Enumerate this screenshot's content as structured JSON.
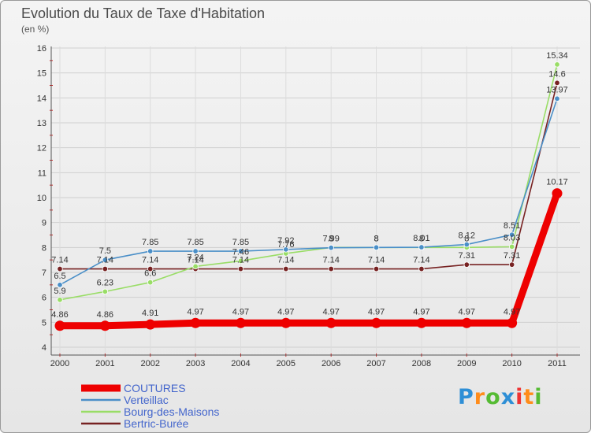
{
  "chart_data": {
    "type": "line",
    "title": "Evolution du Taux de Taxe d'Habitation",
    "subtitle": "(en %)",
    "ylim": [
      4,
      16
    ],
    "yticks": [
      "4",
      "5",
      "6",
      "7",
      "8",
      "9",
      "10",
      "11",
      "12",
      "13",
      "14",
      "15",
      "16"
    ],
    "categories": [
      "2000",
      "2001",
      "2002",
      "2003",
      "2004",
      "2005",
      "2006",
      "2007",
      "2008",
      "2009",
      "2010",
      "2011"
    ],
    "series": [
      {
        "name": "COUTURES",
        "color": "#ee0000",
        "values": [
          4.86,
          4.86,
          4.91,
          4.97,
          4.97,
          4.97,
          4.97,
          4.97,
          4.97,
          4.97,
          4.97,
          10.17
        ],
        "labels": [
          "4.86",
          "4.86",
          "4.91",
          "4.97",
          "4.97",
          "4.97",
          "4.97",
          "4.97",
          "4.97",
          "4.97",
          "4.97",
          "10.17"
        ]
      },
      {
        "name": "Verteillac",
        "color": "#4a8fc8",
        "values": [
          6.5,
          7.5,
          7.85,
          7.85,
          7.85,
          7.92,
          7.99,
          8,
          8.01,
          8.12,
          8.51,
          13.97
        ],
        "labels": [
          "6.5",
          "7.5",
          "7.85",
          "7.85",
          "7.85",
          "7.92",
          "7.99",
          "8",
          "8.01",
          "8.12",
          "8.51",
          "13.97"
        ]
      },
      {
        "name": "Bourg-des-Maisons",
        "color": "#99dd66",
        "values": [
          5.9,
          6.23,
          6.6,
          7.24,
          7.46,
          7.76,
          8,
          8,
          8,
          8,
          8.03,
          15.34
        ],
        "labels": [
          "5.9",
          "6.23",
          "6.6",
          "7.24",
          "7.46",
          "7.76",
          "8",
          "8",
          "8",
          "8",
          "8.03",
          "15.34"
        ]
      },
      {
        "name": "Bertric-Burée",
        "color": "#772222",
        "values": [
          7.14,
          7.14,
          7.14,
          7.14,
          7.14,
          7.14,
          7.14,
          7.14,
          7.14,
          7.31,
          7.31,
          14.6
        ],
        "labels": [
          "7.14",
          "7.14",
          "7.14",
          "7.14",
          "7.14",
          "7.14",
          "7.14",
          "7.14",
          "7.14",
          "7.31",
          "7.31",
          "14.6"
        ]
      }
    ]
  },
  "brand": {
    "letters": [
      "P",
      "r",
      "o",
      "x",
      "i",
      "t",
      "i"
    ],
    "colors": [
      "#2e8fd6",
      "#ff8c1a",
      "#55bb33",
      "#2e8fd6",
      "#ee3333",
      "#ff8c1a",
      "#55bb33"
    ]
  }
}
